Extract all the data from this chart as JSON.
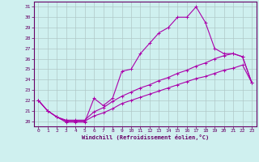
{
  "xlabel": "Windchill (Refroidissement éolien,°C)",
  "bg_color": "#cff0ef",
  "grid_color": "#b0c8c8",
  "line_color": "#aa00aa",
  "x_ticks": [
    0,
    1,
    2,
    3,
    4,
    5,
    6,
    7,
    8,
    9,
    10,
    11,
    12,
    13,
    14,
    15,
    16,
    17,
    18,
    19,
    20,
    21,
    22,
    23
  ],
  "y_ticks": [
    20,
    21,
    22,
    23,
    24,
    25,
    26,
    27,
    28,
    29,
    30,
    31
  ],
  "xlim": [
    -0.5,
    23.5
  ],
  "ylim": [
    19.5,
    31.5
  ],
  "series1_x": [
    0,
    1,
    2,
    3,
    4,
    5,
    6,
    7,
    8,
    9,
    10,
    11,
    12,
    13,
    14,
    15,
    16,
    17,
    18,
    19,
    20,
    21,
    22,
    23
  ],
  "series1_y": [
    22.0,
    21.0,
    20.4,
    19.9,
    19.9,
    19.9,
    22.2,
    21.5,
    22.2,
    24.8,
    25.0,
    26.5,
    27.5,
    28.5,
    29.0,
    30.0,
    30.0,
    31.0,
    29.5,
    27.0,
    26.5,
    26.5,
    26.2,
    23.7
  ],
  "series2_x": [
    0,
    1,
    2,
    3,
    4,
    5,
    6,
    7,
    8,
    9,
    10,
    11,
    12,
    13,
    14,
    15,
    16,
    17,
    18,
    19,
    20,
    21,
    22,
    23
  ],
  "series2_y": [
    22.0,
    21.0,
    20.4,
    20.0,
    20.0,
    20.0,
    20.5,
    20.8,
    21.2,
    21.7,
    22.0,
    22.3,
    22.6,
    22.9,
    23.2,
    23.5,
    23.8,
    24.1,
    24.3,
    24.6,
    24.9,
    25.1,
    25.4,
    23.7
  ],
  "series3_x": [
    0,
    1,
    2,
    3,
    4,
    5,
    6,
    7,
    8,
    9,
    10,
    11,
    12,
    13,
    14,
    15,
    16,
    17,
    18,
    19,
    20,
    21,
    22,
    23
  ],
  "series3_y": [
    22.0,
    21.0,
    20.4,
    20.1,
    20.1,
    20.1,
    20.9,
    21.3,
    21.9,
    22.4,
    22.8,
    23.2,
    23.5,
    23.9,
    24.2,
    24.6,
    24.9,
    25.3,
    25.6,
    26.0,
    26.3,
    26.5,
    26.2,
    23.7
  ]
}
